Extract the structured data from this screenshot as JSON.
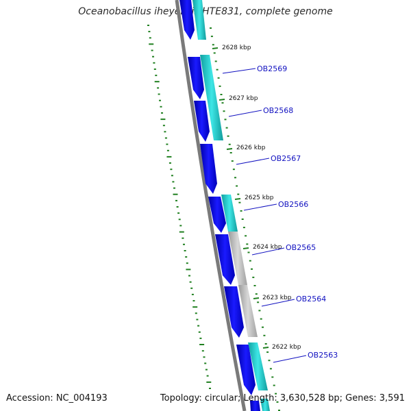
{
  "title": "Oceanobacillus iheyensis HTE831, complete genome",
  "accession_text": "Accession: NC_004193",
  "summary_text": "Topology: circular; Length: 3,630,528 bp; Genes: 3,591",
  "colors": {
    "backbone": "#7a7a7a",
    "cds_forward": "#0a0ae6",
    "orf_track": "#20c8c8",
    "other_track": "#b0b0b0",
    "tick": "#208020",
    "gene_label": "#1010c0"
  },
  "scale_ticks": [
    {
      "label": "2628 kbp"
    },
    {
      "label": "2627 kbp"
    },
    {
      "label": "2626 kbp"
    },
    {
      "label": "2625 kbp"
    },
    {
      "label": "2624 kbp"
    },
    {
      "label": "2623 kbp"
    },
    {
      "label": "2622 kbp"
    }
  ],
  "gene_labels": [
    {
      "name": "OB2569"
    },
    {
      "name": "OB2568"
    },
    {
      "name": "OB2567"
    },
    {
      "name": "OB2566"
    },
    {
      "name": "OB2565"
    },
    {
      "name": "OB2564"
    },
    {
      "name": "OB2563"
    }
  ]
}
